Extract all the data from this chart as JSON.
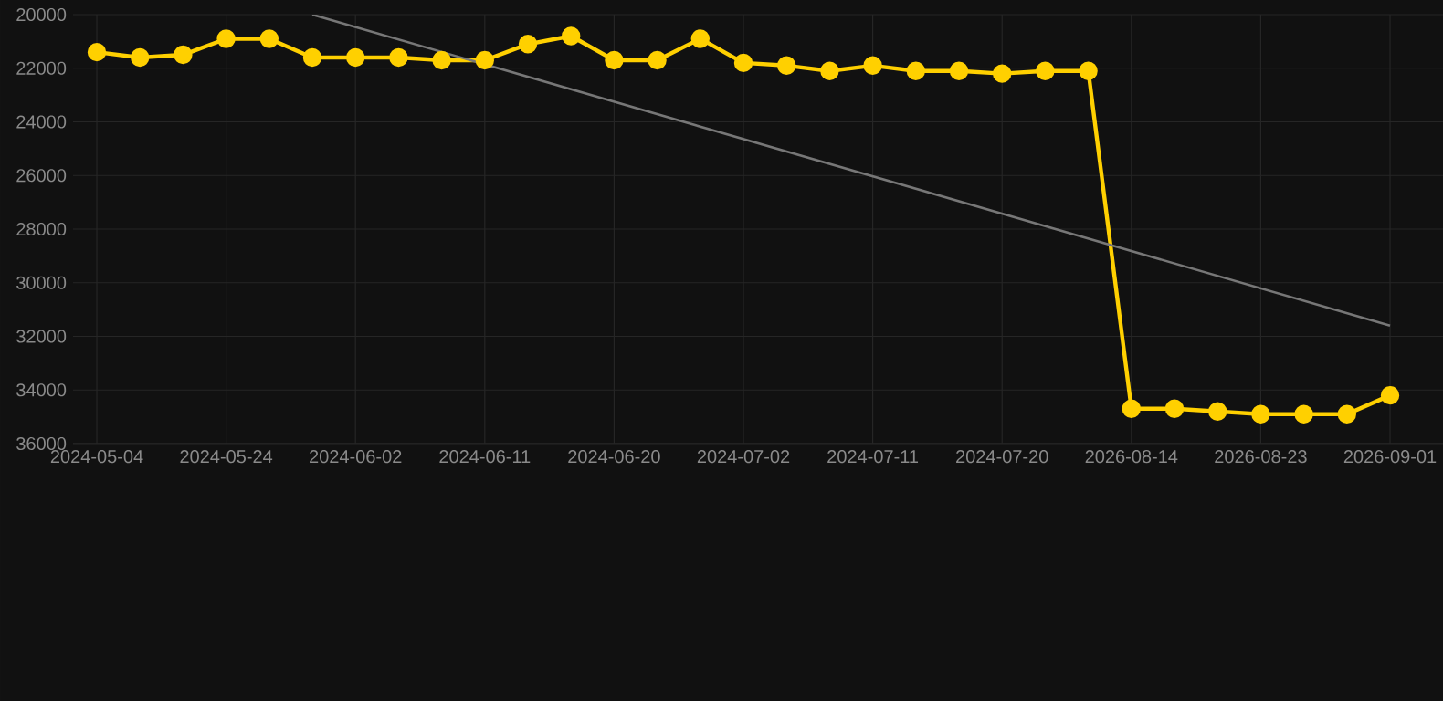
{
  "chart_data": {
    "type": "line",
    "categories": [
      "2024-05-04",
      null,
      null,
      "2024-05-24",
      null,
      null,
      "2024-06-02",
      null,
      null,
      "2024-06-11",
      null,
      null,
      "2024-06-20",
      null,
      null,
      "2024-07-02",
      null,
      null,
      "2024-07-11",
      null,
      null,
      "2024-07-20",
      null,
      null,
      "2026-08-14",
      null,
      null,
      "2026-08-23",
      null,
      null,
      "2026-09-01"
    ],
    "series": [
      {
        "color": "#ffd000",
        "marker": "circle",
        "values": [
          21400,
          21600,
          21500,
          20900,
          20900,
          21600,
          21600,
          21600,
          21700,
          21700,
          21100,
          20800,
          21700,
          21700,
          20900,
          21800,
          21900,
          22100,
          21900,
          22100,
          22100,
          22200,
          22100,
          22100,
          34700,
          34700,
          34800,
          34900,
          34900,
          34900,
          34200
        ]
      },
      {
        "type": "line",
        "color": "#777777",
        "marker": "none",
        "values": [
          null,
          null,
          null,
          null,
          null,
          20000,
          null,
          null,
          null,
          null,
          null,
          null,
          null,
          null,
          null,
          null,
          null,
          null,
          null,
          null,
          null,
          null,
          null,
          null,
          null,
          null,
          null,
          null,
          null,
          null,
          31600
        ]
      }
    ],
    "ylim": [
      36000,
      20000
    ],
    "yticks": [
      20000,
      22000,
      24000,
      26000,
      28000,
      30000,
      32000,
      34000,
      36000
    ],
    "grid": true
  }
}
